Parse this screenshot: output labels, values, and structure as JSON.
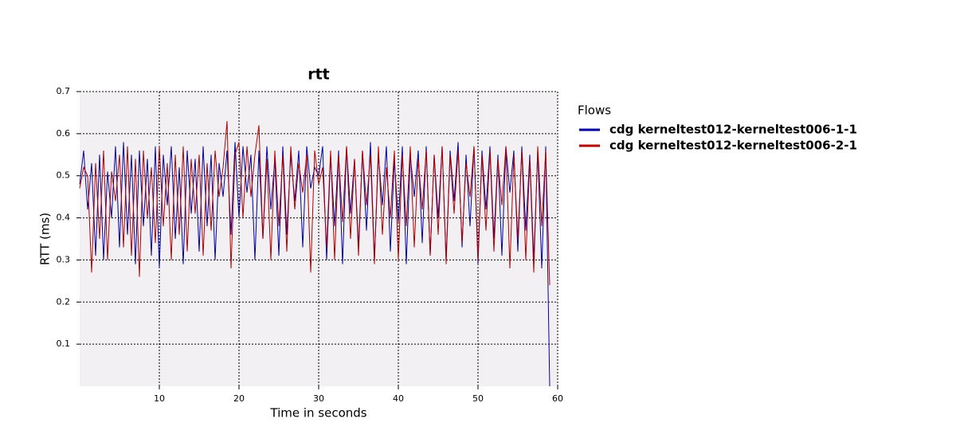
{
  "chart_data": {
    "type": "line",
    "title": "rtt",
    "x_label": "Time in seconds",
    "y_label": "RTT (ms)",
    "legend_title": "Flows",
    "legend_position": "right",
    "grid": true,
    "xlim": [
      0,
      60
    ],
    "xticks": [
      10,
      20,
      30,
      40,
      50,
      60
    ],
    "ylim": [
      0,
      0.7
    ],
    "yticks": [
      0.1,
      0.2,
      0.3,
      0.4,
      0.5,
      0.6,
      0.7
    ],
    "x": [
      0,
      0.5,
      1,
      1.5,
      2,
      2.5,
      3,
      3.5,
      4,
      4.5,
      5,
      5.5,
      6,
      6.5,
      7,
      7.5,
      8,
      8.5,
      9,
      9.5,
      10,
      10.5,
      11,
      11.5,
      12,
      12.5,
      13,
      13.5,
      14,
      14.5,
      15,
      15.5,
      16,
      16.5,
      17,
      17.5,
      18,
      18.5,
      19,
      19.5,
      20,
      20.5,
      21,
      21.5,
      22,
      22.5,
      23,
      23.5,
      24,
      24.5,
      25,
      25.5,
      26,
      26.5,
      27,
      27.5,
      28,
      28.5,
      29,
      29.5,
      30,
      30.5,
      31,
      31.5,
      32,
      32.5,
      33,
      33.5,
      34,
      34.5,
      35,
      35.5,
      36,
      36.5,
      37,
      37.5,
      38,
      38.5,
      39,
      39.5,
      40,
      40.5,
      41,
      41.5,
      42,
      42.5,
      43,
      43.5,
      44,
      44.5,
      45,
      45.5,
      46,
      46.5,
      47,
      47.5,
      48,
      48.5,
      49,
      49.5,
      50,
      50.5,
      51,
      51.5,
      52,
      52.5,
      53,
      53.5,
      54,
      54.5,
      55,
      55.5,
      56,
      56.5,
      57,
      57.5,
      58,
      58.5,
      59
    ],
    "series": [
      {
        "name": "cdg kerneltest012-kerneltest006-1-1",
        "color": "#0000a0",
        "values": [
          0.48,
          0.56,
          0.42,
          0.53,
          0.31,
          0.55,
          0.3,
          0.51,
          0.4,
          0.57,
          0.33,
          0.58,
          0.36,
          0.55,
          0.29,
          0.56,
          0.38,
          0.54,
          0.31,
          0.57,
          0.28,
          0.55,
          0.43,
          0.57,
          0.35,
          0.52,
          0.29,
          0.56,
          0.41,
          0.54,
          0.32,
          0.57,
          0.38,
          0.55,
          0.3,
          0.53,
          0.45,
          0.56,
          0.36,
          0.58,
          0.4,
          0.57,
          0.46,
          0.55,
          0.3,
          0.56,
          0.35,
          0.57,
          0.42,
          0.54,
          0.31,
          0.57,
          0.36,
          0.55,
          0.44,
          0.56,
          0.33,
          0.57,
          0.47,
          0.52,
          0.5,
          0.57,
          0.3,
          0.55,
          0.38,
          0.56,
          0.29,
          0.57,
          0.41,
          0.54,
          0.33,
          0.56,
          0.37,
          0.58,
          0.3,
          0.55,
          0.43,
          0.57,
          0.32,
          0.54,
          0.39,
          0.57,
          0.29,
          0.55,
          0.45,
          0.56,
          0.34,
          0.57,
          0.31,
          0.55,
          0.4,
          0.57,
          0.3,
          0.56,
          0.44,
          0.58,
          0.33,
          0.55,
          0.38,
          0.57,
          0.29,
          0.56,
          0.42,
          0.57,
          0.35,
          0.55,
          0.31,
          0.57,
          0.46,
          0.56,
          0.32,
          0.57,
          0.37,
          0.55,
          0.3,
          0.56,
          0.28,
          0.57,
          0.0
        ]
      },
      {
        "name": "cdg kerneltest012-kerneltest006-2-1",
        "color": "#b00000",
        "values": [
          0.47,
          0.52,
          0.5,
          0.27,
          0.53,
          0.35,
          0.56,
          0.3,
          0.51,
          0.44,
          0.55,
          0.33,
          0.57,
          0.31,
          0.54,
          0.26,
          0.56,
          0.4,
          0.52,
          0.34,
          0.57,
          0.38,
          0.53,
          0.3,
          0.55,
          0.36,
          0.57,
          0.32,
          0.54,
          0.41,
          0.55,
          0.31,
          0.53,
          0.37,
          0.56,
          0.45,
          0.52,
          0.63,
          0.28,
          0.55,
          0.58,
          0.4,
          0.57,
          0.45,
          0.55,
          0.62,
          0.35,
          0.54,
          0.3,
          0.56,
          0.38,
          0.55,
          0.32,
          0.57,
          0.42,
          0.53,
          0.46,
          0.55,
          0.27,
          0.56,
          0.48,
          0.52,
          0.33,
          0.56,
          0.3,
          0.55,
          0.39,
          0.57,
          0.35,
          0.54,
          0.31,
          0.56,
          0.43,
          0.55,
          0.29,
          0.57,
          0.36,
          0.52,
          0.4,
          0.56,
          0.3,
          0.55,
          0.38,
          0.57,
          0.33,
          0.54,
          0.42,
          0.56,
          0.31,
          0.55,
          0.36,
          0.57,
          0.29,
          0.55,
          0.41,
          0.56,
          0.34,
          0.53,
          0.45,
          0.57,
          0.3,
          0.55,
          0.37,
          0.56,
          0.32,
          0.54,
          0.43,
          0.57,
          0.28,
          0.55,
          0.35,
          0.56,
          0.3,
          0.54,
          0.27,
          0.57,
          0.38,
          0.56,
          0.24
        ]
      }
    ]
  }
}
